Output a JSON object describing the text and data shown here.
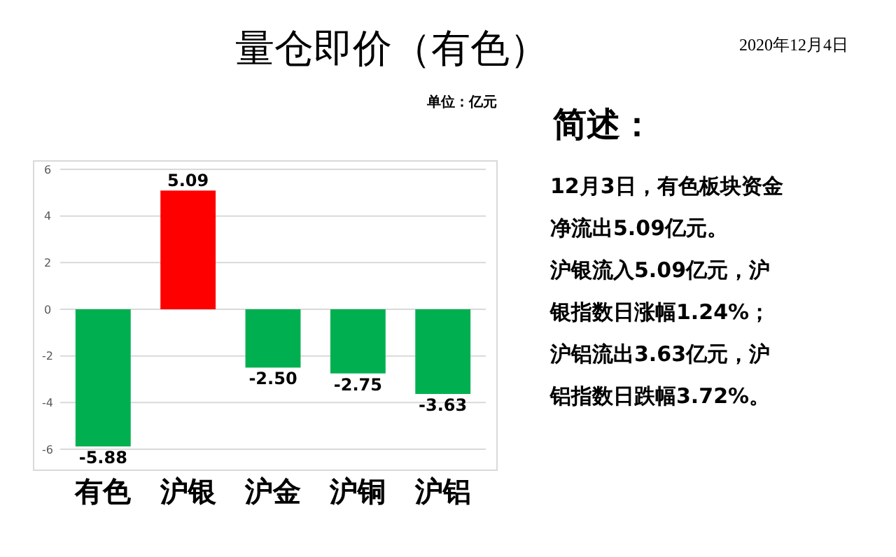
{
  "chart_data": {
    "type": "bar",
    "title": "量仓即价（有色）",
    "subtitle": "单位：亿元",
    "categories": [
      "有色",
      "沪银",
      "沪金",
      "沪铜",
      "沪铝"
    ],
    "values": [
      -5.88,
      5.09,
      -2.5,
      -2.75,
      -3.63
    ],
    "colors": [
      "#00b050",
      "#ff0000",
      "#00b050",
      "#00b050",
      "#00b050"
    ],
    "value_labels": [
      "-5.88",
      "5.09",
      "-2.50",
      "-2.75",
      "-3.63"
    ],
    "ylim": [
      -6,
      6
    ],
    "yticks": [
      -6,
      -4,
      -2,
      0,
      2,
      4,
      6
    ],
    "grid": "y",
    "annotations": [
      "2020年12月4日",
      "简述：",
      "12月3日，有色板块资金",
      "净流出5.09亿元。",
      "沪银流入5.09亿元，沪",
      "银指数日涨幅1.24%；",
      "沪铝流出3.63亿元，沪",
      "铝指数日跌幅3.72%。"
    ]
  }
}
